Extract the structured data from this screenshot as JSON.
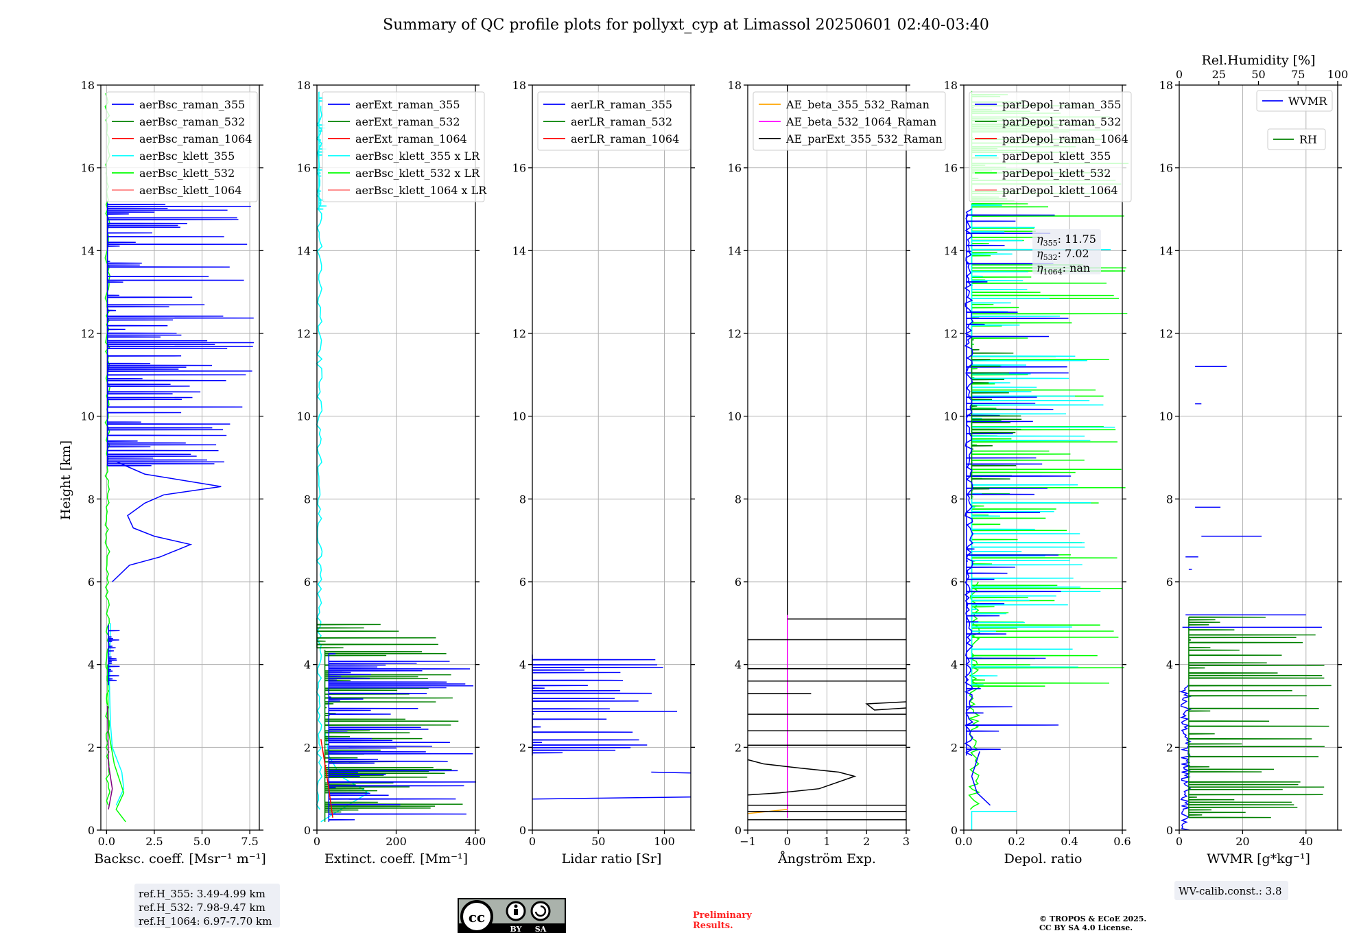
{
  "title": "Summary of QC profile plots for pollyxt_cyp at Limassol 20250601 02:40-03:40",
  "y_label": "Height [km]",
  "chart_data": [
    {
      "id": "bsc",
      "type": "line",
      "xlabel": "Backsc. coeff. [Msr⁻¹ m⁻¹]",
      "xlim": [
        -0.3,
        8.0
      ],
      "xticks": [
        0,
        2.5,
        5.0,
        7.5
      ],
      "xtick_labels": [
        "0.0",
        "2.5",
        "5.0",
        "7.5"
      ],
      "ylim": [
        0,
        18
      ],
      "yticks": [
        0,
        2,
        4,
        6,
        8,
        10,
        12,
        14,
        16,
        18
      ],
      "series": [
        {
          "name": "aerBsc_raman_355",
          "color": "#0000ff"
        },
        {
          "name": "aerBsc_raman_532",
          "color": "#008000"
        },
        {
          "name": "aerBsc_raman_1064",
          "color": "#ff0000"
        },
        {
          "name": "aerBsc_klett_355",
          "color": "#00ffff"
        },
        {
          "name": "aerBsc_klett_532",
          "color": "#00ff00"
        },
        {
          "name": "aerBsc_klett_1064",
          "color": "#ff8080"
        }
      ]
    },
    {
      "id": "ext",
      "type": "line",
      "xlabel": "Extinct. coeff. [Mm⁻¹]",
      "xlim": [
        0,
        400
      ],
      "xticks": [
        0,
        200,
        400
      ],
      "xtick_labels": [
        "0",
        "200",
        "400"
      ],
      "ylim": [
        0,
        18
      ],
      "yticks": [
        0,
        2,
        4,
        6,
        8,
        10,
        12,
        14,
        16,
        18
      ],
      "series": [
        {
          "name": "aerExt_raman_355",
          "color": "#0000ff"
        },
        {
          "name": "aerExt_raman_532",
          "color": "#008000"
        },
        {
          "name": "aerExt_raman_1064",
          "color": "#ff0000"
        },
        {
          "name": "aerBsc_klett_355 x LR",
          "color": "#00ffff"
        },
        {
          "name": "aerBsc_klett_532 x LR",
          "color": "#00ff00"
        },
        {
          "name": "aerBsc_klett_1064 x LR",
          "color": "#ff8080"
        }
      ]
    },
    {
      "id": "lr",
      "type": "line",
      "xlabel": "Lidar ratio [Sr]",
      "xlim": [
        0,
        120
      ],
      "xticks": [
        0,
        50,
        100
      ],
      "xtick_labels": [
        "0",
        "50",
        "100"
      ],
      "ylim": [
        0,
        18
      ],
      "yticks": [
        0,
        2,
        4,
        6,
        8,
        10,
        12,
        14,
        16,
        18
      ],
      "series": [
        {
          "name": "aerLR_raman_355",
          "color": "#0000ff"
        },
        {
          "name": "aerLR_raman_532",
          "color": "#008000"
        },
        {
          "name": "aerLR_raman_1064",
          "color": "#ff0000"
        }
      ]
    },
    {
      "id": "ae",
      "type": "line",
      "xlabel": "Ångström Exp.",
      "xlim": [
        -1,
        3
      ],
      "xticks": [
        -1,
        0,
        1,
        2,
        3
      ],
      "xtick_labels": [
        "−1",
        "0",
        "1",
        "2",
        "3"
      ],
      "ylim": [
        0,
        18
      ],
      "yticks": [
        0,
        2,
        4,
        6,
        8,
        10,
        12,
        14,
        16,
        18
      ],
      "series": [
        {
          "name": "AE_beta_355_532_Raman",
          "color": "#ffa500"
        },
        {
          "name": "AE_beta_532_1064_Raman",
          "color": "#ff00ff"
        },
        {
          "name": "AE_parExt_355_532_Raman",
          "color": "#000000"
        }
      ]
    },
    {
      "id": "dep",
      "type": "line",
      "xlabel": "Depol. ratio",
      "xlim": [
        0,
        0.6
      ],
      "xticks": [
        0,
        0.2,
        0.4,
        0.6
      ],
      "xtick_labels": [
        "0.0",
        "0.2",
        "0.4",
        "0.6"
      ],
      "ylim": [
        0,
        18
      ],
      "yticks": [
        0,
        2,
        4,
        6,
        8,
        10,
        12,
        14,
        16,
        18
      ],
      "series": [
        {
          "name": "parDepol_raman_355",
          "color": "#0000ff"
        },
        {
          "name": "parDepol_raman_532",
          "color": "#008000"
        },
        {
          "name": "parDepol_raman_1064",
          "color": "#ff0000"
        },
        {
          "name": "parDepol_klett_355",
          "color": "#00ffff"
        },
        {
          "name": "parDepol_klett_532",
          "color": "#00ff00"
        },
        {
          "name": "parDepol_klett_1064",
          "color": "#ff8080"
        }
      ]
    },
    {
      "id": "wv",
      "type": "line",
      "xlabel": "WVMR [g*kg⁻¹]",
      "xlim": [
        0,
        50
      ],
      "xticks": [
        0,
        20,
        40
      ],
      "xtick_labels": [
        "0",
        "20",
        "40"
      ],
      "x2label": "Rel.Humidity [%]",
      "x2lim": [
        0,
        100
      ],
      "x2ticks": [
        0,
        25,
        50,
        75,
        100
      ],
      "x2tick_labels": [
        "0",
        "25",
        "50",
        "75",
        "100"
      ],
      "ylim": [
        0,
        18
      ],
      "yticks": [
        0,
        2,
        4,
        6,
        8,
        10,
        12,
        14,
        16,
        18
      ],
      "series": [
        {
          "name": "WVMR",
          "color": "#0000ff"
        },
        {
          "name": "RH",
          "color": "#008000"
        }
      ]
    }
  ],
  "ref_heights": [
    "ref.H_355: 3.49-4.99 km",
    "ref.H_532: 7.98-9.47 km",
    "ref.H_1064: 6.97-7.70 km"
  ],
  "eta": [
    {
      "sub": "355",
      "value": "11.75"
    },
    {
      "sub": "532",
      "value": "7.02"
    },
    {
      "sub": "1064",
      "value": "nan"
    }
  ],
  "wv_calib": "WV-calib.const.: 3.8",
  "preliminary": [
    "Preliminary",
    "Results."
  ],
  "copyright": [
    "© TROPOS & ECoE 2025.",
    "CC BY SA 4.0 License."
  ],
  "license_badge": {
    "cc": "cc",
    "by": "BY",
    "sa": "SA"
  }
}
